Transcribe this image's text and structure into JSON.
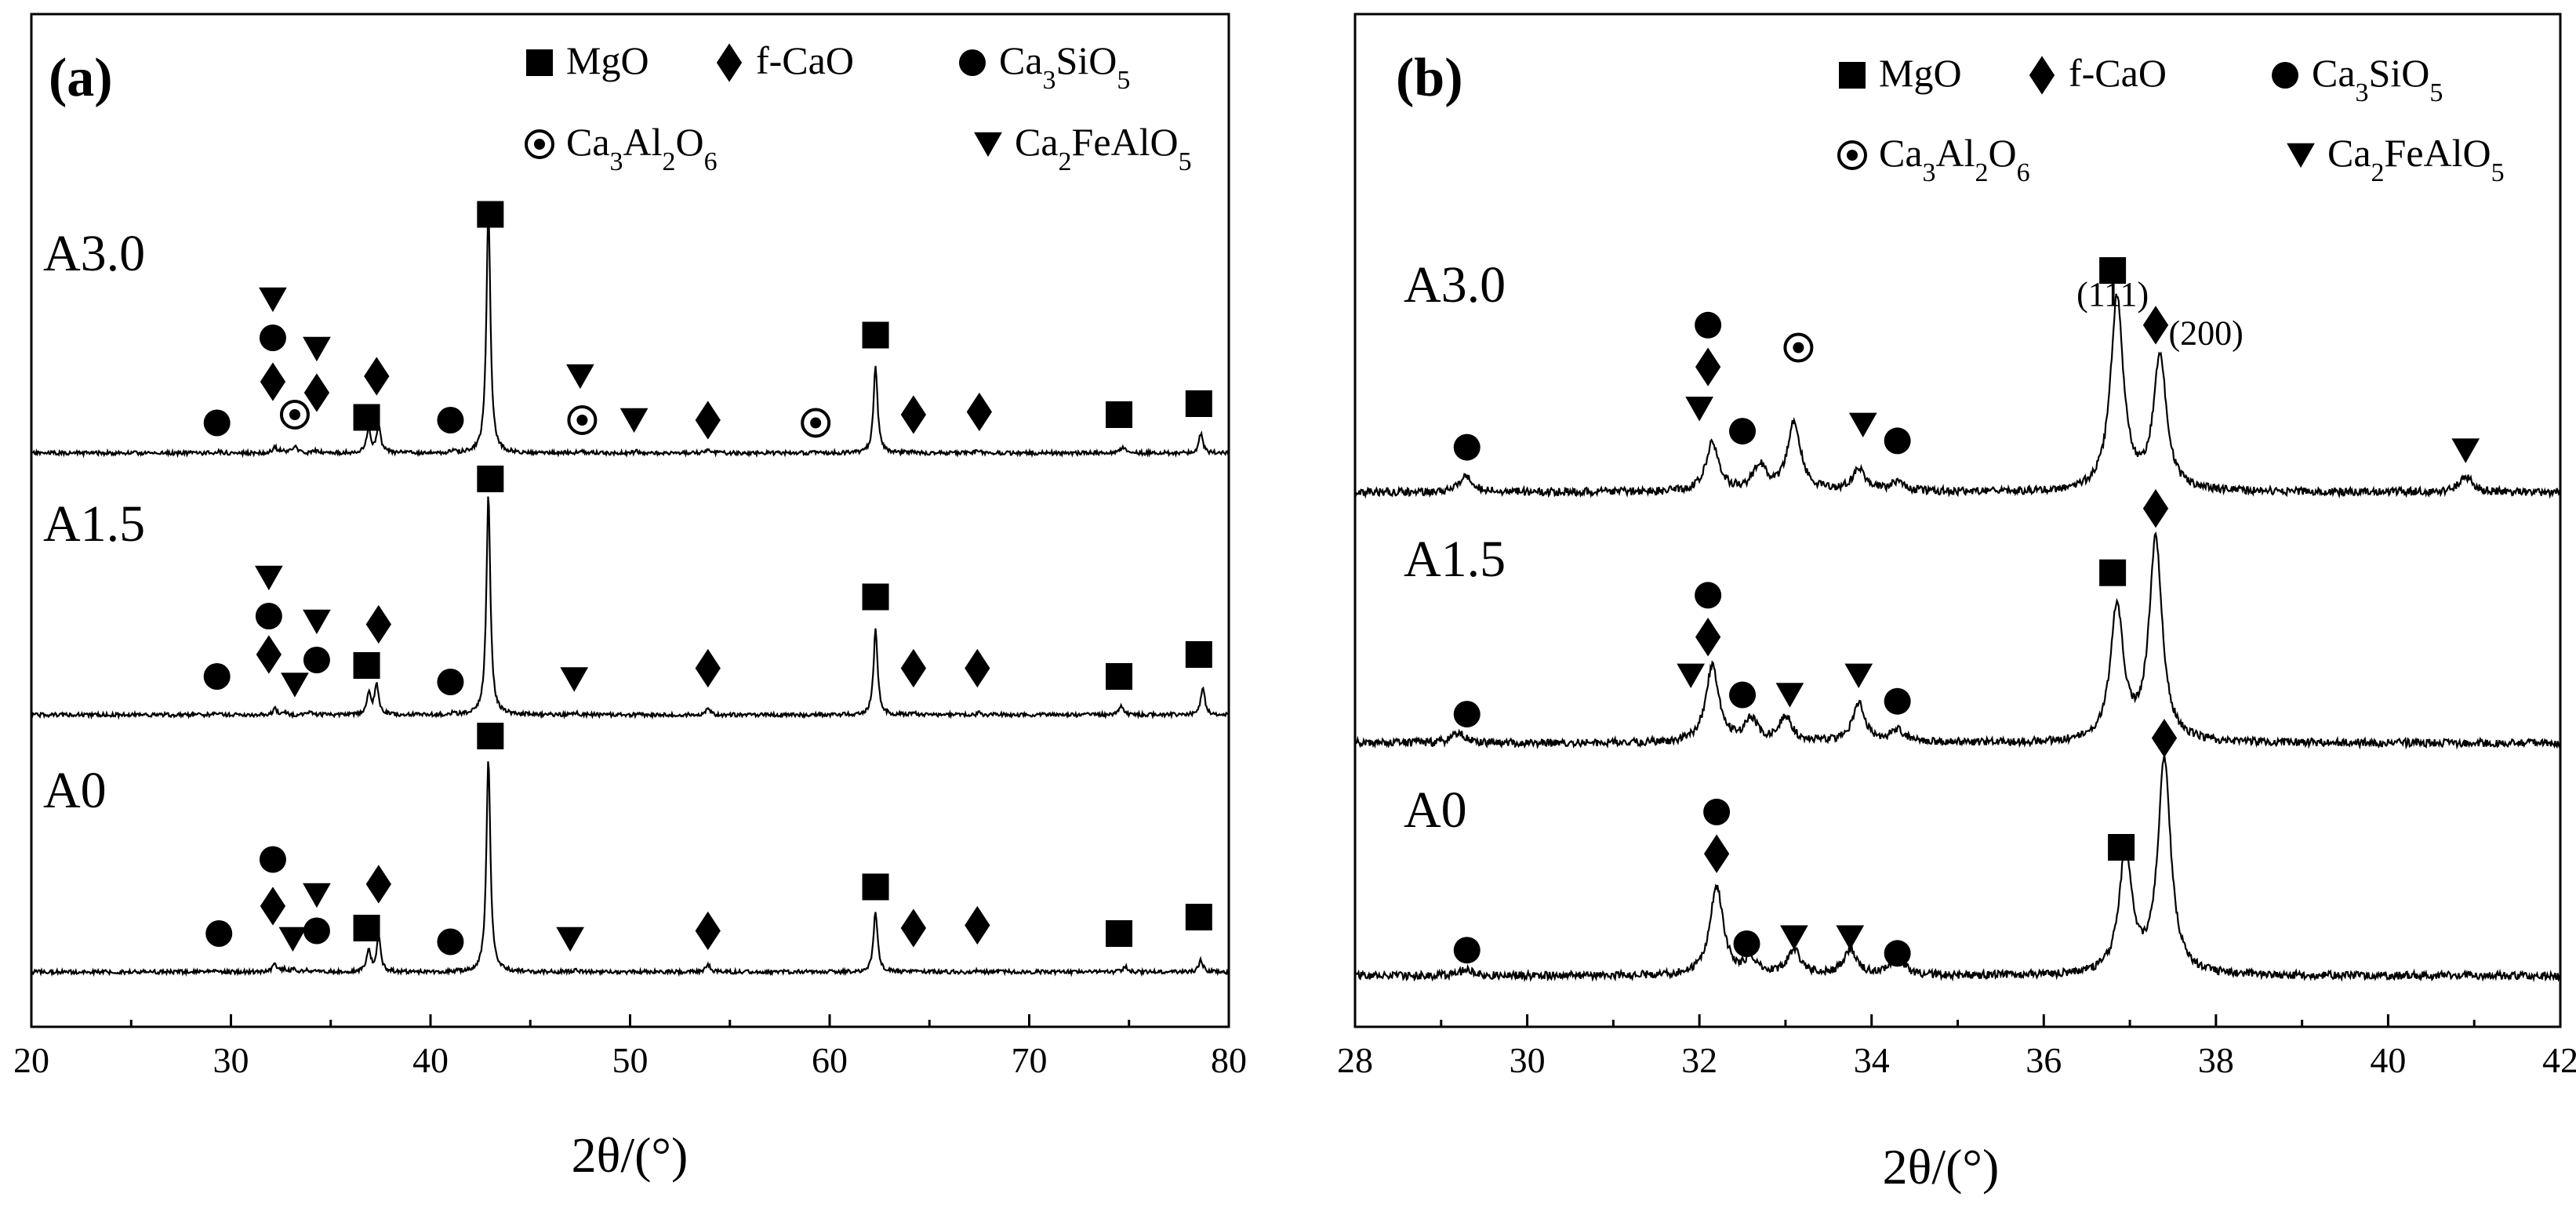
{
  "chart_data": [
    {
      "type": "line",
      "panel_label": "(a)",
      "xlabel": "2θ/(°)",
      "xlim": [
        20,
        80
      ],
      "xticks": [
        20,
        30,
        40,
        50,
        60,
        70,
        80
      ],
      "legend": {
        "placement": "top-right",
        "entries": [
          {
            "symbol": "square",
            "label": "MgO",
            "html": "MgO"
          },
          {
            "symbol": "diamond",
            "label": "f-CaO",
            "html": "f-CaO"
          },
          {
            "symbol": "circle",
            "label": "Ca3SiO5",
            "html": "Ca<tspan baseline-shift=\"sub\" font-size=\"34\">3</tspan>SiO<tspan baseline-shift=\"sub\" font-size=\"34\">5</tspan>"
          },
          {
            "symbol": "dotcircle",
            "label": "Ca3Al2O6",
            "html": "Ca<tspan baseline-shift=\"sub\" font-size=\"34\">3</tspan>Al<tspan baseline-shift=\"sub\" font-size=\"34\">2</tspan>O<tspan baseline-shift=\"sub\" font-size=\"34\">6</tspan>"
          },
          {
            "symbol": "triangle",
            "label": "Ca2FeAlO5",
            "html": "Ca<tspan baseline-shift=\"sub\" font-size=\"34\">2</tspan>FeAlO<tspan baseline-shift=\"sub\" font-size=\"34\">5</tspan>"
          }
        ]
      },
      "series": [
        {
          "name": "A3.0",
          "peaks": [
            [
              29.4,
              0.3
            ],
            [
              32.2,
              1.1
            ],
            [
              32.6,
              0.6
            ],
            [
              33.2,
              1.4
            ],
            [
              34.3,
              0.5
            ],
            [
              36.9,
              4.5
            ],
            [
              37.4,
              5.2
            ],
            [
              41.2,
              0.3
            ],
            [
              42.9,
              45
            ],
            [
              47.5,
              0.5
            ],
            [
              50.3,
              0.3
            ],
            [
              53.9,
              0.8
            ],
            [
              59.4,
              0.3
            ],
            [
              62.3,
              16
            ],
            [
              64.2,
              0.3
            ],
            [
              67.4,
              0.4
            ],
            [
              74.7,
              1.2
            ],
            [
              78.6,
              3.5
            ]
          ],
          "markers": [
            {
              "symbol": "circle",
              "x": 29.3,
              "y": 5.5
            },
            {
              "symbol": "diamond",
              "x": 32.1,
              "y": 13
            },
            {
              "symbol": "circle",
              "x": 32.1,
              "y": 21
            },
            {
              "symbol": "triangle",
              "x": 32.1,
              "y": 28
            },
            {
              "symbol": "dotcircle",
              "x": 33.2,
              "y": 7
            },
            {
              "symbol": "diamond",
              "x": 34.3,
              "y": 11
            },
            {
              "symbol": "triangle",
              "x": 34.3,
              "y": 19
            },
            {
              "symbol": "square",
              "x": 36.8,
              "y": 6.5
            },
            {
              "symbol": "diamond",
              "x": 37.3,
              "y": 14
            },
            {
              "symbol": "circle",
              "x": 41.0,
              "y": 6
            },
            {
              "symbol": "square",
              "x": 43.0,
              "y": 43.5
            },
            {
              "symbol": "triangle",
              "x": 47.5,
              "y": 14
            },
            {
              "symbol": "dotcircle",
              "x": 47.6,
              "y": 6
            },
            {
              "symbol": "triangle",
              "x": 50.2,
              "y": 6
            },
            {
              "symbol": "diamond",
              "x": 53.9,
              "y": 6
            },
            {
              "symbol": "dotcircle",
              "x": 59.3,
              "y": 5.5
            },
            {
              "symbol": "square",
              "x": 62.3,
              "y": 21.5
            },
            {
              "symbol": "diamond",
              "x": 64.2,
              "y": 7
            },
            {
              "symbol": "diamond",
              "x": 67.5,
              "y": 7.5
            },
            {
              "symbol": "square",
              "x": 74.5,
              "y": 7
            },
            {
              "symbol": "square",
              "x": 78.5,
              "y": 9
            }
          ]
        },
        {
          "name": "A1.5",
          "peaks": [
            [
              29.3,
              0.2
            ],
            [
              32.2,
              1.2
            ],
            [
              32.7,
              0.6
            ],
            [
              34.0,
              0.4
            ],
            [
              36.9,
              4
            ],
            [
              37.3,
              5.5
            ],
            [
              41.1,
              0.3
            ],
            [
              42.9,
              40
            ],
            [
              47.3,
              0.4
            ],
            [
              53.9,
              1.3
            ],
            [
              62.3,
              15.5
            ],
            [
              64.2,
              0.3
            ],
            [
              67.5,
              0.4
            ],
            [
              74.6,
              1.6
            ],
            [
              78.7,
              5
            ]
          ],
          "markers": [
            {
              "symbol": "circle",
              "x": 29.3,
              "y": 7
            },
            {
              "symbol": "diamond",
              "x": 31.9,
              "y": 11
            },
            {
              "symbol": "circle",
              "x": 31.9,
              "y": 18
            },
            {
              "symbol": "triangle",
              "x": 31.9,
              "y": 25
            },
            {
              "symbol": "triangle",
              "x": 33.2,
              "y": 5.5
            },
            {
              "symbol": "circle",
              "x": 34.3,
              "y": 10
            },
            {
              "symbol": "triangle",
              "x": 34.3,
              "y": 17
            },
            {
              "symbol": "square",
              "x": 36.8,
              "y": 9
            },
            {
              "symbol": "diamond",
              "x": 37.4,
              "y": 16.5
            },
            {
              "symbol": "circle",
              "x": 41.0,
              "y": 6
            },
            {
              "symbol": "square",
              "x": 43.0,
              "y": 43
            },
            {
              "symbol": "triangle",
              "x": 47.2,
              "y": 6.5
            },
            {
              "symbol": "diamond",
              "x": 53.9,
              "y": 8.5
            },
            {
              "symbol": "square",
              "x": 62.3,
              "y": 21.5
            },
            {
              "symbol": "diamond",
              "x": 64.2,
              "y": 8.5
            },
            {
              "symbol": "diamond",
              "x": 67.4,
              "y": 8.5
            },
            {
              "symbol": "square",
              "x": 74.5,
              "y": 7
            },
            {
              "symbol": "square",
              "x": 78.5,
              "y": 11
            }
          ]
        },
        {
          "name": "A0",
          "peaks": [
            [
              29.4,
              0.2
            ],
            [
              32.2,
              1.6
            ],
            [
              32.7,
              0.5
            ],
            [
              33.1,
              0.5
            ],
            [
              33.8,
              0.3
            ],
            [
              36.9,
              4
            ],
            [
              37.4,
              6.5
            ],
            [
              42.9,
              39
            ],
            [
              47.3,
              0.3
            ],
            [
              53.9,
              1.4
            ],
            [
              62.3,
              11
            ],
            [
              64.2,
              0.3
            ],
            [
              67.4,
              0.3
            ],
            [
              74.8,
              1.0
            ],
            [
              78.6,
              2.3
            ]
          ],
          "markers": [
            {
              "symbol": "circle",
              "x": 29.4,
              "y": 7
            },
            {
              "symbol": "diamond",
              "x": 32.1,
              "y": 12
            },
            {
              "symbol": "circle",
              "x": 32.1,
              "y": 20.5
            },
            {
              "symbol": "triangle",
              "x": 33.1,
              "y": 6
            },
            {
              "symbol": "circle",
              "x": 34.3,
              "y": 7.5
            },
            {
              "symbol": "triangle",
              "x": 34.3,
              "y": 14
            },
            {
              "symbol": "square",
              "x": 36.8,
              "y": 8
            },
            {
              "symbol": "diamond",
              "x": 37.4,
              "y": 16
            },
            {
              "symbol": "circle",
              "x": 41.0,
              "y": 5.5
            },
            {
              "symbol": "square",
              "x": 43.0,
              "y": 43
            },
            {
              "symbol": "triangle",
              "x": 47.0,
              "y": 6
            },
            {
              "symbol": "diamond",
              "x": 53.9,
              "y": 7.5
            },
            {
              "symbol": "square",
              "x": 62.3,
              "y": 15.5
            },
            {
              "symbol": "diamond",
              "x": 64.2,
              "y": 8
            },
            {
              "symbol": "diamond",
              "x": 67.4,
              "y": 8.5
            },
            {
              "symbol": "square",
              "x": 74.5,
              "y": 7
            },
            {
              "symbol": "square",
              "x": 78.5,
              "y": 10
            }
          ]
        }
      ]
    },
    {
      "type": "line",
      "panel_label": "(b)",
      "xlabel": "2θ/(°)",
      "xlim": [
        28,
        42
      ],
      "xticks": [
        28,
        30,
        32,
        34,
        36,
        38,
        40,
        42
      ],
      "legend": {
        "placement": "top-right",
        "entries": [
          {
            "symbol": "square",
            "label": "MgO",
            "html": "MgO"
          },
          {
            "symbol": "diamond",
            "label": "f-CaO",
            "html": "f-CaO"
          },
          {
            "symbol": "circle",
            "label": "Ca3SiO5",
            "html": "Ca<tspan baseline-shift=\"sub\" font-size=\"34\">3</tspan>SiO<tspan baseline-shift=\"sub\" font-size=\"34\">5</tspan>"
          },
          {
            "symbol": "dotcircle",
            "label": "Ca3Al2O6",
            "html": "Ca<tspan baseline-shift=\"sub\" font-size=\"34\">3</tspan>Al<tspan baseline-shift=\"sub\" font-size=\"34\">2</tspan>O<tspan baseline-shift=\"sub\" font-size=\"34\">6</tspan>"
          },
          {
            "symbol": "triangle",
            "label": "Ca2FeAlO5",
            "html": "Ca<tspan baseline-shift=\"sub\" font-size=\"34\">2</tspan>FeAlO<tspan baseline-shift=\"sub\" font-size=\"34\">5</tspan>"
          }
        ]
      },
      "annotations": [
        {
          "text": "(111)",
          "x": 36.8,
          "y": 58
        },
        {
          "text": "(200)",
          "x": 37.45,
          "y": 46
        }
      ],
      "series": [
        {
          "name": "A3.0",
          "peaks": [
            [
              29.3,
              5
            ],
            [
              32.15,
              15
            ],
            [
              32.7,
              8
            ],
            [
              33.1,
              22
            ],
            [
              33.85,
              7
            ],
            [
              34.3,
              3
            ],
            [
              36.85,
              60
            ],
            [
              37.35,
              42
            ],
            [
              40.9,
              5
            ]
          ],
          "markers": [
            {
              "symbol": "circle",
              "x": 29.3,
              "y": 14
            },
            {
              "symbol": "triangle",
              "x": 32.0,
              "y": 26
            },
            {
              "symbol": "diamond",
              "x": 32.1,
              "y": 39
            },
            {
              "symbol": "circle",
              "x": 32.1,
              "y": 52
            },
            {
              "symbol": "circle",
              "x": 32.5,
              "y": 19
            },
            {
              "symbol": "dotcircle",
              "x": 33.15,
              "y": 45
            },
            {
              "symbol": "triangle",
              "x": 33.9,
              "y": 21
            },
            {
              "symbol": "circle",
              "x": 34.3,
              "y": 16
            },
            {
              "symbol": "square",
              "x": 36.8,
              "y": 69
            },
            {
              "symbol": "diamond",
              "x": 37.3,
              "y": 52
            },
            {
              "symbol": "triangle",
              "x": 40.9,
              "y": 13
            }
          ]
        },
        {
          "name": "A1.5",
          "peaks": [
            [
              29.2,
              3
            ],
            [
              32.15,
              24
            ],
            [
              32.6,
              7
            ],
            [
              33.0,
              8
            ],
            [
              33.85,
              12
            ],
            [
              34.3,
              4
            ],
            [
              36.85,
              42
            ],
            [
              37.3,
              63
            ]
          ],
          "markers": [
            {
              "symbol": "circle",
              "x": 29.3,
              "y": 9
            },
            {
              "symbol": "triangle",
              "x": 31.9,
              "y": 21
            },
            {
              "symbol": "diamond",
              "x": 32.1,
              "y": 33
            },
            {
              "symbol": "circle",
              "x": 32.1,
              "y": 46
            },
            {
              "symbol": "circle",
              "x": 32.5,
              "y": 15
            },
            {
              "symbol": "triangle",
              "x": 33.05,
              "y": 15
            },
            {
              "symbol": "triangle",
              "x": 33.85,
              "y": 21
            },
            {
              "symbol": "circle",
              "x": 34.3,
              "y": 13
            },
            {
              "symbol": "square",
              "x": 36.8,
              "y": 53
            },
            {
              "symbol": "diamond",
              "x": 37.3,
              "y": 73
            }
          ]
        },
        {
          "name": "A0",
          "peaks": [
            [
              29.3,
              2
            ],
            [
              32.2,
              28
            ],
            [
              32.6,
              5
            ],
            [
              33.1,
              8
            ],
            [
              33.75,
              8
            ],
            [
              34.3,
              6
            ],
            [
              36.95,
              38
            ],
            [
              37.4,
              67
            ]
          ],
          "markers": [
            {
              "symbol": "circle",
              "x": 29.3,
              "y": 8
            },
            {
              "symbol": "diamond",
              "x": 32.2,
              "y": 38
            },
            {
              "symbol": "circle",
              "x": 32.2,
              "y": 51
            },
            {
              "symbol": "circle",
              "x": 32.55,
              "y": 10
            },
            {
              "symbol": "triangle",
              "x": 33.1,
              "y": 12
            },
            {
              "symbol": "triangle",
              "x": 33.75,
              "y": 12
            },
            {
              "symbol": "circle",
              "x": 34.3,
              "y": 7
            },
            {
              "symbol": "square",
              "x": 36.9,
              "y": 40
            },
            {
              "symbol": "diamond",
              "x": 37.4,
              "y": 74
            }
          ]
        }
      ]
    }
  ]
}
